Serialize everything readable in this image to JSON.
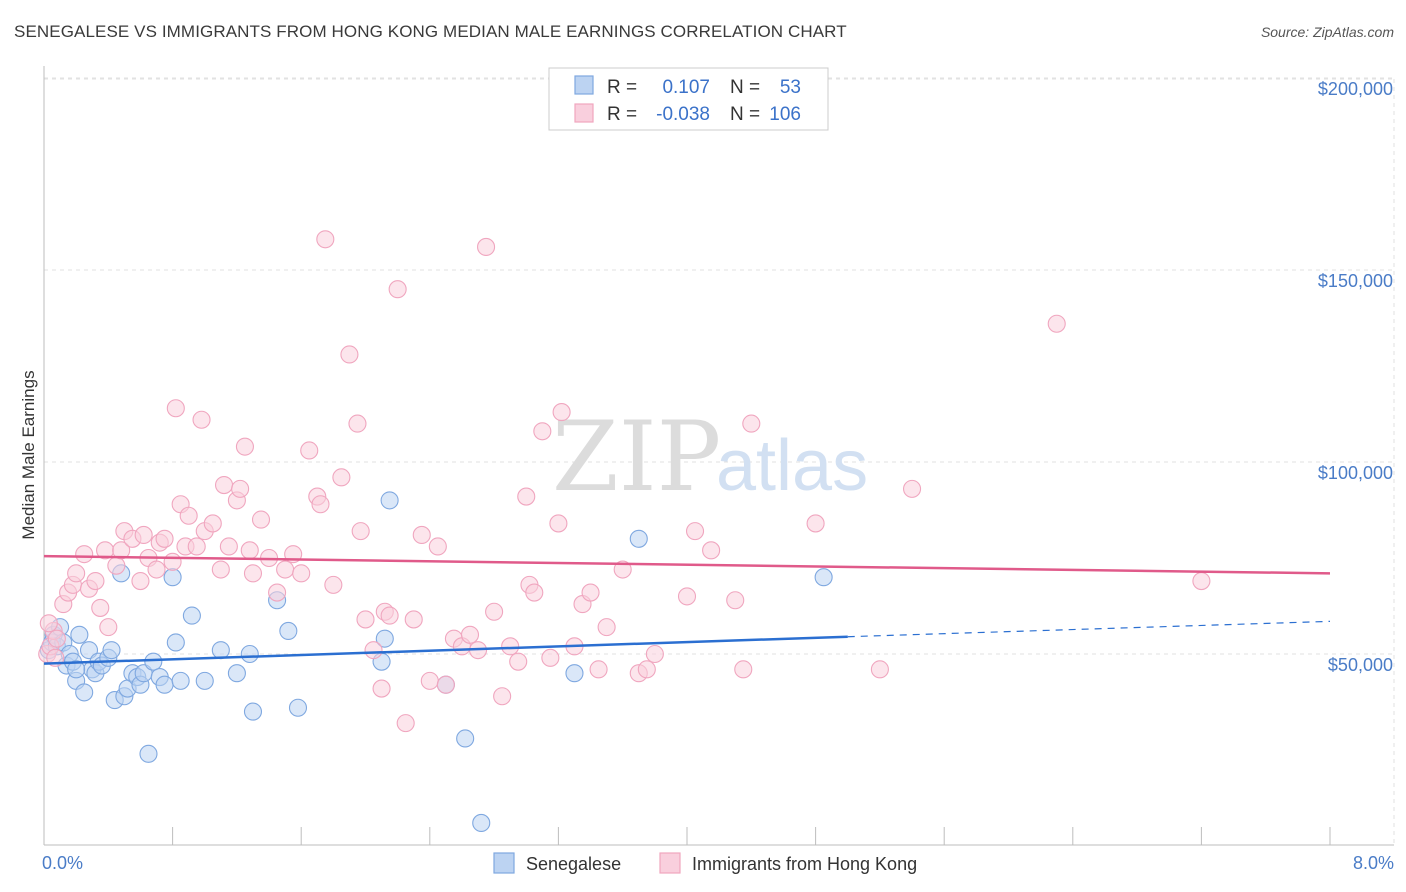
{
  "title": "SENEGALESE VS IMMIGRANTS FROM HONG KONG MEDIAN MALE EARNINGS CORRELATION CHART",
  "source": "Source: ZipAtlas.com",
  "watermark": {
    "part1": "ZIP",
    "part2": "atlas"
  },
  "chart_data": {
    "type": "scatter",
    "title": "SENEGALESE VS IMMIGRANTS FROM HONG KONG MEDIAN MALE EARNINGS CORRELATION CHART",
    "xlabel": "",
    "ylabel": "Median Male Earnings",
    "xlim": [
      0,
      8
    ],
    "ylim": [
      0,
      210000
    ],
    "x_tick_labels": {
      "min": "0.0%",
      "max": "8.0%"
    },
    "y_ticks": [
      {
        "value": 50000,
        "label": "$50,000"
      },
      {
        "value": 100000,
        "label": "$100,000"
      },
      {
        "value": 150000,
        "label": "$150,000"
      },
      {
        "value": 200000,
        "label": "$200,000"
      }
    ],
    "legend": {
      "position": "top-center",
      "rows": [
        {
          "r_label": "R =",
          "r_value": "0.107",
          "n_label": "N =",
          "n_value": "53"
        },
        {
          "r_label": "R =",
          "r_value": "-0.038",
          "n_label": "N =",
          "n_value": "106"
        }
      ]
    },
    "series": [
      {
        "name": "Senegalese",
        "color": "#7fa8e0",
        "fill": "#bcd3f2",
        "line_color": "#2b6fd1",
        "trend": {
          "x0": 0.0,
          "y0": 47500,
          "x1": 5.0,
          "y1": 54500,
          "dash_x1": 8.0,
          "dash_y1": 58500
        },
        "points": [
          [
            0.03,
            51000
          ],
          [
            0.05,
            53000
          ],
          [
            0.06,
            55000
          ],
          [
            0.08,
            52000
          ],
          [
            0.1,
            57000
          ],
          [
            0.12,
            53000
          ],
          [
            0.14,
            47000
          ],
          [
            0.16,
            50000
          ],
          [
            0.18,
            48000
          ],
          [
            0.2,
            43000
          ],
          [
            0.22,
            55000
          ],
          [
            0.25,
            40000
          ],
          [
            0.28,
            51000
          ],
          [
            0.3,
            46000
          ],
          [
            0.32,
            45000
          ],
          [
            0.34,
            48000
          ],
          [
            0.36,
            47000
          ],
          [
            0.4,
            49000
          ],
          [
            0.42,
            51000
          ],
          [
            0.44,
            38000
          ],
          [
            0.48,
            71000
          ],
          [
            0.5,
            39000
          ],
          [
            0.52,
            41000
          ],
          [
            0.55,
            45000
          ],
          [
            0.58,
            44000
          ],
          [
            0.6,
            42000
          ],
          [
            0.62,
            45000
          ],
          [
            0.65,
            24000
          ],
          [
            0.68,
            48000
          ],
          [
            0.72,
            44000
          ],
          [
            0.75,
            42000
          ],
          [
            0.8,
            70000
          ],
          [
            0.82,
            53000
          ],
          [
            0.85,
            43000
          ],
          [
            0.92,
            60000
          ],
          [
            1.0,
            43000
          ],
          [
            1.1,
            51000
          ],
          [
            1.2,
            45000
          ],
          [
            1.28,
            50000
          ],
          [
            1.3,
            35000
          ],
          [
            1.45,
            64000
          ],
          [
            1.52,
            56000
          ],
          [
            1.58,
            36000
          ],
          [
            2.1,
            48000
          ],
          [
            2.12,
            54000
          ],
          [
            2.15,
            90000
          ],
          [
            2.5,
            42000
          ],
          [
            2.62,
            28000
          ],
          [
            2.72,
            6000
          ],
          [
            3.3,
            45000
          ],
          [
            3.7,
            80000
          ],
          [
            4.85,
            70000
          ],
          [
            0.2,
            46000
          ]
        ]
      },
      {
        "name": "Immigrants from Hong Kong",
        "color": "#f0a6bf",
        "fill": "#f9cfdd",
        "line_color": "#e05a8a",
        "trend": {
          "x0": 0.0,
          "y0": 75500,
          "x1": 8.0,
          "y1": 71000
        },
        "points": [
          [
            0.02,
            50000
          ],
          [
            0.04,
            52000
          ],
          [
            0.06,
            56000
          ],
          [
            0.08,
            54000
          ],
          [
            0.12,
            63000
          ],
          [
            0.15,
            66000
          ],
          [
            0.18,
            68000
          ],
          [
            0.2,
            71000
          ],
          [
            0.25,
            76000
          ],
          [
            0.28,
            67000
          ],
          [
            0.32,
            69000
          ],
          [
            0.35,
            62000
          ],
          [
            0.38,
            77000
          ],
          [
            0.4,
            57000
          ],
          [
            0.45,
            73000
          ],
          [
            0.48,
            77000
          ],
          [
            0.5,
            82000
          ],
          [
            0.55,
            80000
          ],
          [
            0.6,
            69000
          ],
          [
            0.62,
            81000
          ],
          [
            0.65,
            75000
          ],
          [
            0.7,
            72000
          ],
          [
            0.72,
            79000
          ],
          [
            0.75,
            80000
          ],
          [
            0.8,
            74000
          ],
          [
            0.82,
            114000
          ],
          [
            0.85,
            89000
          ],
          [
            0.88,
            78000
          ],
          [
            0.9,
            86000
          ],
          [
            0.95,
            78000
          ],
          [
            0.98,
            111000
          ],
          [
            1.0,
            82000
          ],
          [
            1.05,
            84000
          ],
          [
            1.1,
            72000
          ],
          [
            1.12,
            94000
          ],
          [
            1.15,
            78000
          ],
          [
            1.2,
            90000
          ],
          [
            1.22,
            93000
          ],
          [
            1.25,
            104000
          ],
          [
            1.28,
            77000
          ],
          [
            1.3,
            71000
          ],
          [
            1.35,
            85000
          ],
          [
            1.4,
            75000
          ],
          [
            1.45,
            66000
          ],
          [
            1.5,
            72000
          ],
          [
            1.55,
            76000
          ],
          [
            1.6,
            71000
          ],
          [
            1.65,
            103000
          ],
          [
            1.7,
            91000
          ],
          [
            1.72,
            89000
          ],
          [
            1.75,
            158000
          ],
          [
            1.8,
            68000
          ],
          [
            1.85,
            96000
          ],
          [
            1.9,
            128000
          ],
          [
            1.95,
            110000
          ],
          [
            1.97,
            82000
          ],
          [
            2.0,
            59000
          ],
          [
            2.05,
            51000
          ],
          [
            2.1,
            41000
          ],
          [
            2.12,
            61000
          ],
          [
            2.15,
            60000
          ],
          [
            2.2,
            145000
          ],
          [
            2.25,
            32000
          ],
          [
            2.3,
            59000
          ],
          [
            2.35,
            81000
          ],
          [
            2.4,
            43000
          ],
          [
            2.45,
            78000
          ],
          [
            2.5,
            42000
          ],
          [
            2.55,
            54000
          ],
          [
            2.6,
            52000
          ],
          [
            2.65,
            55000
          ],
          [
            2.7,
            51000
          ],
          [
            2.75,
            156000
          ],
          [
            2.8,
            61000
          ],
          [
            2.85,
            39000
          ],
          [
            2.9,
            52000
          ],
          [
            2.95,
            48000
          ],
          [
            3.0,
            91000
          ],
          [
            3.02,
            68000
          ],
          [
            3.05,
            66000
          ],
          [
            3.1,
            108000
          ],
          [
            3.15,
            49000
          ],
          [
            3.2,
            84000
          ],
          [
            3.22,
            113000
          ],
          [
            3.3,
            52000
          ],
          [
            3.35,
            63000
          ],
          [
            3.4,
            66000
          ],
          [
            3.45,
            46000
          ],
          [
            3.5,
            57000
          ],
          [
            3.6,
            72000
          ],
          [
            3.7,
            45000
          ],
          [
            3.75,
            46000
          ],
          [
            3.8,
            50000
          ],
          [
            4.0,
            65000
          ],
          [
            4.05,
            82000
          ],
          [
            4.15,
            77000
          ],
          [
            4.3,
            64000
          ],
          [
            4.35,
            46000
          ],
          [
            4.4,
            110000
          ],
          [
            4.8,
            84000
          ],
          [
            5.2,
            46000
          ],
          [
            5.4,
            93000
          ],
          [
            6.3,
            136000
          ],
          [
            7.2,
            69000
          ],
          [
            0.03,
            58000
          ],
          [
            0.07,
            49000
          ]
        ]
      }
    ]
  }
}
